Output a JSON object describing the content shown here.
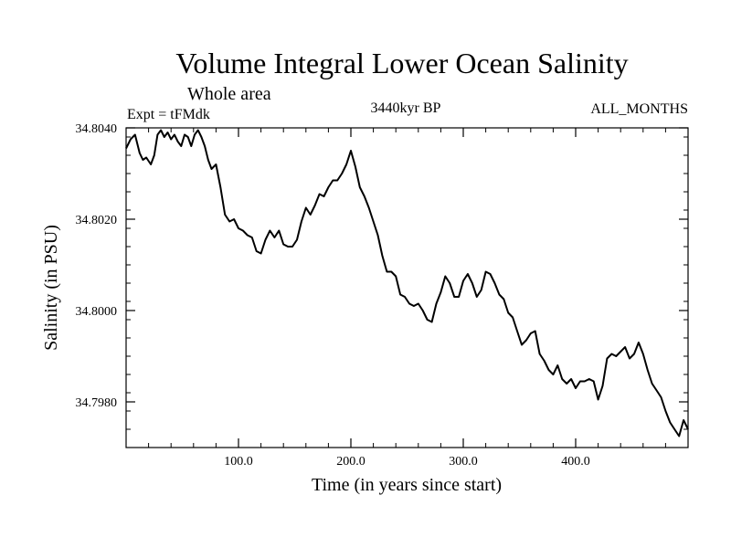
{
  "chart_data": {
    "type": "line",
    "title": "Volume Integral Lower Ocean Salinity",
    "subtitle": "Whole area",
    "experiment": "Expt = tFMdk",
    "period": "3440kyr BP",
    "months": "ALL_MONTHS",
    "xlabel": "Time (in years since start)",
    "ylabel": "Salinity (in PSU)",
    "xlim": [
      0,
      500
    ],
    "ylim": [
      34.797,
      34.804
    ],
    "x_major_ticks": [
      100,
      200,
      300,
      400
    ],
    "x_tick_labels": [
      "100.0",
      "200.0",
      "300.0",
      "400.0"
    ],
    "x_minor_step": 20,
    "y_major_ticks": [
      34.798,
      34.8,
      34.802,
      34.804
    ],
    "y_tick_labels": [
      "34.7980",
      "34.8000",
      "34.8020",
      "34.8040"
    ],
    "y_minor_step": 0.0004,
    "grid": false,
    "series": [
      {
        "name": "salinity",
        "color": "#000000",
        "points": [
          [
            0,
            34.80355
          ],
          [
            4,
            34.80375
          ],
          [
            8,
            34.80385
          ],
          [
            12,
            34.80345
          ],
          [
            15,
            34.8033
          ],
          [
            18,
            34.80335
          ],
          [
            22,
            34.8032
          ],
          [
            25,
            34.8034
          ],
          [
            28,
            34.80385
          ],
          [
            31,
            34.80395
          ],
          [
            34,
            34.8038
          ],
          [
            37,
            34.8039
          ],
          [
            40,
            34.80375
          ],
          [
            43,
            34.80385
          ],
          [
            46,
            34.8037
          ],
          [
            49,
            34.8036
          ],
          [
            52,
            34.80385
          ],
          [
            55,
            34.8038
          ],
          [
            58,
            34.8036
          ],
          [
            61,
            34.80385
          ],
          [
            64,
            34.80395
          ],
          [
            67,
            34.8038
          ],
          [
            70,
            34.8036
          ],
          [
            73,
            34.8033
          ],
          [
            76,
            34.8031
          ],
          [
            80,
            34.8032
          ],
          [
            84,
            34.8027
          ],
          [
            88,
            34.8021
          ],
          [
            92,
            34.80195
          ],
          [
            96,
            34.802
          ],
          [
            100,
            34.8018
          ],
          [
            104,
            34.80175
          ],
          [
            108,
            34.80165
          ],
          [
            112,
            34.8016
          ],
          [
            116,
            34.8013
          ],
          [
            120,
            34.80125
          ],
          [
            124,
            34.80155
          ],
          [
            128,
            34.80175
          ],
          [
            132,
            34.8016
          ],
          [
            136,
            34.80175
          ],
          [
            140,
            34.80145
          ],
          [
            144,
            34.8014
          ],
          [
            148,
            34.8014
          ],
          [
            152,
            34.80155
          ],
          [
            156,
            34.80195
          ],
          [
            160,
            34.80225
          ],
          [
            164,
            34.8021
          ],
          [
            168,
            34.8023
          ],
          [
            172,
            34.80255
          ],
          [
            176,
            34.8025
          ],
          [
            180,
            34.8027
          ],
          [
            184,
            34.80285
          ],
          [
            188,
            34.80285
          ],
          [
            192,
            34.803
          ],
          [
            196,
            34.8032
          ],
          [
            200,
            34.8035
          ],
          [
            204,
            34.80315
          ],
          [
            208,
            34.8027
          ],
          [
            212,
            34.8025
          ],
          [
            216,
            34.80225
          ],
          [
            220,
            34.80195
          ],
          [
            224,
            34.80165
          ],
          [
            228,
            34.8012
          ],
          [
            232,
            34.80085
          ],
          [
            236,
            34.80085
          ],
          [
            240,
            34.80075
          ],
          [
            244,
            34.80035
          ],
          [
            248,
            34.8003
          ],
          [
            252,
            34.80015
          ],
          [
            256,
            34.8001
          ],
          [
            260,
            34.80015
          ],
          [
            264,
            34.8
          ],
          [
            268,
            34.7998
          ],
          [
            272,
            34.79975
          ],
          [
            276,
            34.80015
          ],
          [
            280,
            34.8004
          ],
          [
            284,
            34.80075
          ],
          [
            288,
            34.8006
          ],
          [
            292,
            34.8003
          ],
          [
            296,
            34.8003
          ],
          [
            300,
            34.80065
          ],
          [
            304,
            34.8008
          ],
          [
            308,
            34.8006
          ],
          [
            312,
            34.8003
          ],
          [
            316,
            34.80045
          ],
          [
            320,
            34.80085
          ],
          [
            324,
            34.8008
          ],
          [
            328,
            34.8006
          ],
          [
            332,
            34.80035
          ],
          [
            336,
            34.80025
          ],
          [
            340,
            34.79995
          ],
          [
            344,
            34.79985
          ],
          [
            348,
            34.79955
          ],
          [
            352,
            34.79925
          ],
          [
            356,
            34.79935
          ],
          [
            360,
            34.7995
          ],
          [
            364,
            34.79955
          ],
          [
            368,
            34.79905
          ],
          [
            372,
            34.7989
          ],
          [
            376,
            34.7987
          ],
          [
            380,
            34.7986
          ],
          [
            384,
            34.7988
          ],
          [
            388,
            34.7985
          ],
          [
            392,
            34.7984
          ],
          [
            396,
            34.7985
          ],
          [
            400,
            34.7983
          ],
          [
            404,
            34.79845
          ],
          [
            408,
            34.79845
          ],
          [
            412,
            34.7985
          ],
          [
            416,
            34.79845
          ],
          [
            420,
            34.79805
          ],
          [
            424,
            34.79835
          ],
          [
            428,
            34.79895
          ],
          [
            432,
            34.79905
          ],
          [
            436,
            34.799
          ],
          [
            440,
            34.7991
          ],
          [
            444,
            34.7992
          ],
          [
            448,
            34.79895
          ],
          [
            452,
            34.79905
          ],
          [
            456,
            34.7993
          ],
          [
            460,
            34.79905
          ],
          [
            464,
            34.7987
          ],
          [
            468,
            34.7984
          ],
          [
            472,
            34.79825
          ],
          [
            476,
            34.7981
          ],
          [
            480,
            34.7978
          ],
          [
            484,
            34.79755
          ],
          [
            488,
            34.7974
          ],
          [
            492,
            34.79725
          ],
          [
            496,
            34.7976
          ],
          [
            500,
            34.7974
          ]
        ]
      }
    ]
  }
}
